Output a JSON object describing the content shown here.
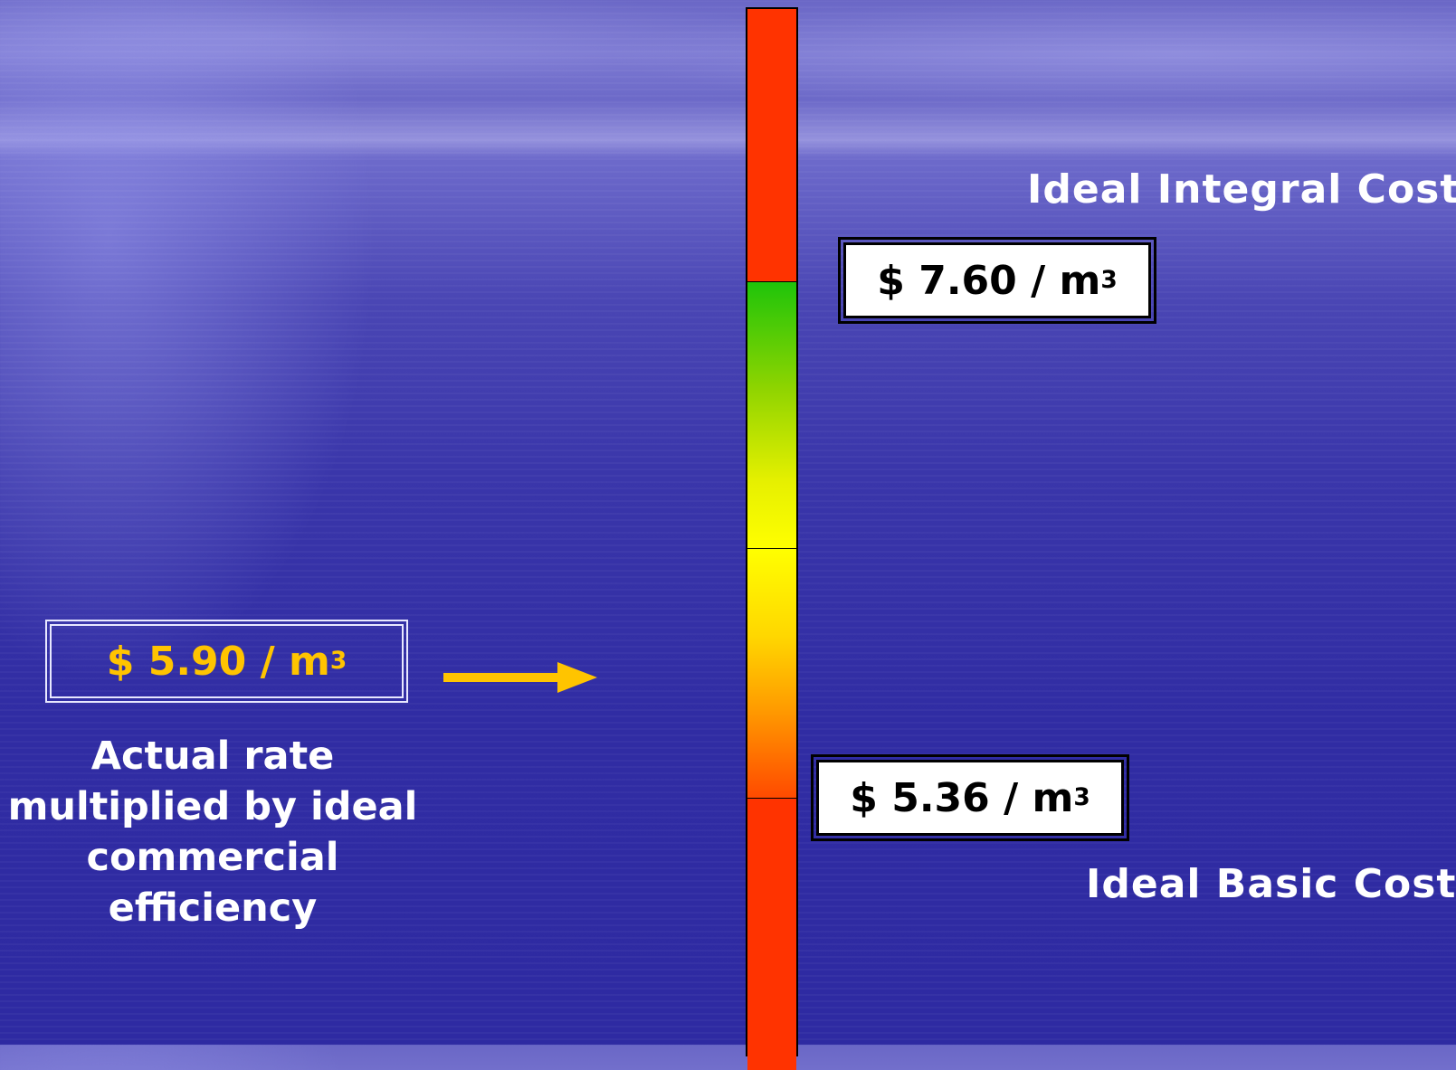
{
  "labels": {
    "top": "Ideal Integral Cost",
    "bottom": "Ideal Basic Cost"
  },
  "prices": {
    "top": {
      "amount": "$ 7.60 / m",
      "unit_power": "3"
    },
    "bottom": {
      "amount": "$ 5.36 / m",
      "unit_power": "3"
    },
    "actual": {
      "amount": "$ 5.90 / m",
      "unit_power": "3"
    }
  },
  "description": {
    "lines": [
      "Actual rate",
      "multiplied by ideal",
      "commercial",
      "efficiency"
    ]
  },
  "colors": {
    "red": "#ff3300",
    "green": "#1fc40a",
    "yellow": "#ffff00",
    "orange": "#ff9a00",
    "actual_text": "#ffc400",
    "arrow": "#ffc400"
  },
  "icons": {
    "arrow": "right-arrow-icon"
  }
}
